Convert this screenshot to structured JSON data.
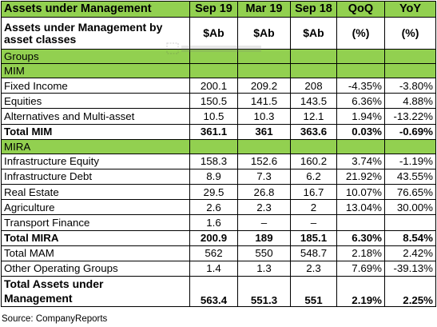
{
  "header": {
    "title": "Assets under Management",
    "columns": [
      "Sep 19",
      "Mar 19",
      "Sep 18",
      "QoQ",
      "YoY"
    ],
    "subtitle_line1": "Assets under Management by",
    "subtitle_line2": "asset classes",
    "units": [
      "$Ab",
      "$Ab",
      "$Ab",
      "(%)",
      "(%)"
    ]
  },
  "groups_label": "Groups",
  "sections": [
    {
      "name": "MIM",
      "rows": [
        {
          "label": "Fixed Income",
          "values": [
            "200.1",
            "209.2",
            "208",
            "-4.35%",
            "-3.80%"
          ]
        },
        {
          "label": "Equities",
          "values": [
            "150.5",
            "141.5",
            "143.5",
            "6.36%",
            "4.88%"
          ]
        },
        {
          "label": "Alternatives and Multi-asset",
          "values": [
            "10.5",
            "10.3",
            "12.1",
            "1.94%",
            "-13.22%"
          ]
        }
      ],
      "total": {
        "label": "Total MIM",
        "values": [
          "361.1",
          "361",
          "363.6",
          "0.03%",
          "-0.69%"
        ]
      }
    },
    {
      "name": "MIRA",
      "rows": [
        {
          "label": "Infrastructure Equity",
          "values": [
            "158.3",
            "152.6",
            "160.2",
            "3.74%",
            "-1.19%"
          ]
        },
        {
          "label": "Infrastructure Debt",
          "values": [
            "8.9",
            "7.3",
            "6.2",
            "21.92%",
            "43.55%"
          ]
        },
        {
          "label": "Real Estate",
          "values": [
            "29.5",
            "26.8",
            "16.7",
            "10.07%",
            "76.65%"
          ]
        },
        {
          "label": "Agriculture",
          "values": [
            "2.6",
            "2.3",
            "2",
            "13.04%",
            "30.00%"
          ]
        },
        {
          "label": "Transport Finance",
          "values": [
            "1.6",
            "–",
            "–",
            "",
            ""
          ]
        }
      ],
      "total": {
        "label": "Total MIRA",
        "values": [
          "200.9",
          "189",
          "185.1",
          "6.30%",
          "8.54%"
        ]
      }
    }
  ],
  "other_rows": [
    {
      "label": "Total MAM",
      "values": [
        "562",
        "550",
        "548.7",
        "2.18%",
        "2.42%"
      ]
    },
    {
      "label": "Other Operating Groups",
      "values": [
        "1.4",
        "1.3",
        "2.3",
        "7.69%",
        "-39.13%"
      ]
    }
  ],
  "grand_total": {
    "label_line1": "Total Assets under",
    "label_line2": "Management",
    "values": [
      "563.4",
      "551.3",
      "551",
      "2.19%",
      "2.25%"
    ]
  },
  "source": "Source: CompanyReports",
  "watermark_icon": "rectangular-snip-icon",
  "colors": {
    "header_green": "#92d050",
    "border": "#000000"
  }
}
